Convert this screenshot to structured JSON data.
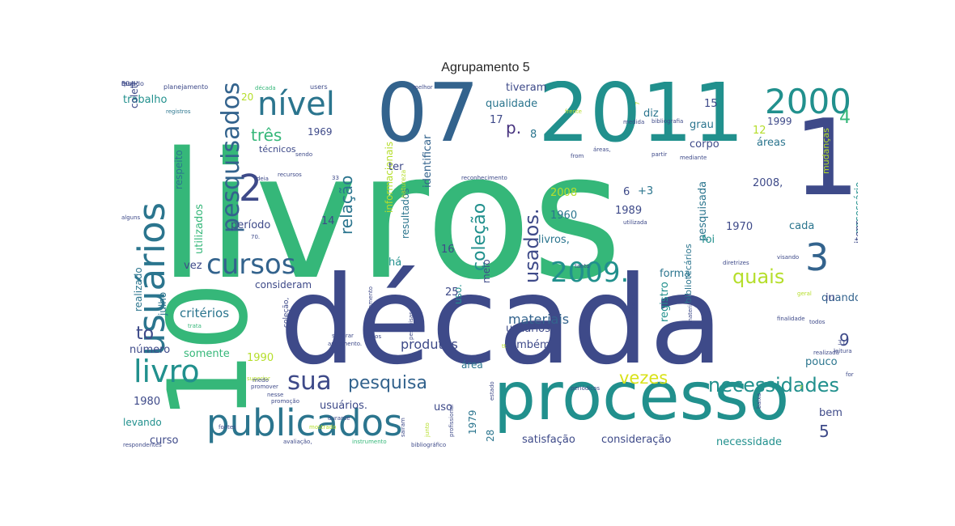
{
  "title": "Agrupamento 5",
  "palette": {
    "purple": "#46327e",
    "indigo": "#3e4a89",
    "blue": "#33638d",
    "steel": "#2b758e",
    "teal": "#21908d",
    "green": "#35b779",
    "lime": "#6ccd5a",
    "yellow": "#b5de2b",
    "pale": "#d8e219"
  },
  "words": [
    {
      "text": "livros"
    },
    {
      "text": "década"
    },
    {
      "text": "processo"
    },
    {
      "text": "2011"
    },
    {
      "text": "07"
    },
    {
      "text": "10"
    },
    {
      "text": "1"
    },
    {
      "text": "publicados"
    },
    {
      "text": "usuários"
    },
    {
      "text": "livro"
    },
    {
      "text": "2000"
    },
    {
      "text": "nível"
    },
    {
      "text": "cursos"
    },
    {
      "text": "2009."
    },
    {
      "text": "sua"
    },
    {
      "text": "pesquisados"
    },
    {
      "text": "necessidades"
    },
    {
      "text": "3"
    },
    {
      "text": "pesquisa"
    },
    {
      "text": "2"
    },
    {
      "text": "usados."
    },
    {
      "text": "coleção"
    },
    {
      "text": "relação"
    },
    {
      "text": "vezes"
    },
    {
      "text": "quais"
    },
    {
      "text": "três"
    },
    {
      "text": "materiais"
    },
    {
      "text": "produtos"
    },
    {
      "text": "critérios"
    },
    {
      "text": "to"
    },
    {
      "text": "9"
    },
    {
      "text": "5"
    },
    {
      "text": "4"
    },
    {
      "text": "p."
    },
    {
      "text": "8"
    },
    {
      "text": "trabalho"
    },
    {
      "text": "qualidade"
    },
    {
      "text": "tiveram"
    },
    {
      "text": "identificar"
    },
    {
      "text": "grau"
    },
    {
      "text": "corpo"
    },
    {
      "text": "1969"
    },
    {
      "text": "técnicos"
    },
    {
      "text": "respeito"
    },
    {
      "text": "utilizados"
    },
    {
      "text": "período"
    },
    {
      "text": "2008"
    },
    {
      "text": "1960"
    },
    {
      "text": "livros,"
    },
    {
      "text": "1989"
    },
    {
      "text": "6"
    },
    {
      "text": "+3"
    },
    {
      "text": "2008,"
    },
    {
      "text": "pesquisada"
    },
    {
      "text": "foi"
    },
    {
      "text": "1970"
    },
    {
      "text": "cada"
    },
    {
      "text": "necessário"
    },
    {
      "text": "itens"
    },
    {
      "text": "forma"
    },
    {
      "text": "quando"
    },
    {
      "text": "registro"
    },
    {
      "text": "in"
    },
    {
      "text": "usuários,"
    },
    {
      "text": "também"
    },
    {
      "text": "pouco"
    },
    {
      "text": "1990"
    },
    {
      "text": "somente"
    },
    {
      "text": "número"
    },
    {
      "text": "realizado"
    },
    {
      "text": "julho"
    },
    {
      "text": "consideram"
    },
    {
      "text": "uso."
    },
    {
      "text": "meio"
    },
    {
      "text": "informacionais"
    },
    {
      "text": "resultados"
    },
    {
      "text": "há"
    },
    {
      "text": "16"
    },
    {
      "text": "25"
    },
    {
      "text": "levando"
    },
    {
      "text": "1980"
    },
    {
      "text": "curso"
    },
    {
      "text": "usuários."
    },
    {
      "text": "uso"
    },
    {
      "text": "1979"
    },
    {
      "text": "28"
    },
    {
      "text": "satisfação"
    },
    {
      "text": "consideração"
    },
    {
      "text": "necessidade"
    },
    {
      "text": "bem"
    },
    {
      "text": "área"
    },
    {
      "text": "bibliotecários"
    },
    {
      "text": "vez"
    },
    {
      "text": "diz"
    },
    {
      "text": "15"
    },
    {
      "text": "1999"
    },
    {
      "text": "áreas"
    },
    {
      "text": "12"
    },
    {
      "text": "17"
    },
    {
      "text": "ter"
    },
    {
      "text": "14"
    },
    {
      "text": "20"
    },
    {
      "text": "coleta"
    },
    {
      "text": "mudanças"
    },
    {
      "text": "planejamento"
    },
    {
      "text": "users"
    },
    {
      "text": "registros"
    },
    {
      "text": "melhor"
    },
    {
      "text": "década"
    },
    {
      "text": "coleção,"
    },
    {
      "text": "finalidade"
    },
    {
      "text": "diretrizes"
    },
    {
      "text": "periódicos"
    },
    {
      "text": "respondentes"
    },
    {
      "text": "avaliação,"
    },
    {
      "text": "instrumento"
    },
    {
      "text": "bibliográfico"
    },
    {
      "text": "promoção"
    },
    {
      "text": "superior"
    },
    {
      "text": "geral"
    },
    {
      "text": "trata"
    },
    {
      "text": "visando"
    },
    {
      "text": "todos"
    },
    {
      "text": "realizada"
    },
    {
      "text": "leitura"
    },
    {
      "text": "material"
    },
    {
      "text": "pesquisas"
    },
    {
      "text": "partir"
    },
    {
      "text": "mediante"
    },
    {
      "text": "utilizada"
    },
    {
      "text": "reconhecimento"
    },
    {
      "text": "sendo"
    },
    {
      "text": "natureza"
    },
    {
      "text": "from"
    },
    {
      "text": "áreas,"
    },
    {
      "text": "superar"
    },
    {
      "text": "andamento"
    },
    {
      "text": "dados"
    },
    {
      "text": "sairam"
    },
    {
      "text": "junto"
    },
    {
      "text": "profissional"
    },
    {
      "text": "durante"
    },
    {
      "text": "mostrado"
    },
    {
      "text": "frente"
    },
    {
      "text": "escolha"
    },
    {
      "text": "fontes"
    },
    {
      "text": "baixa"
    },
    {
      "text": "estado"
    },
    {
      "text": "medida"
    },
    {
      "text": "tanto"
    },
    {
      "text": "ideia"
    },
    {
      "text": "recursos"
    },
    {
      "text": "promover"
    },
    {
      "text": "nesse"
    },
    {
      "text": "bibliografia"
    },
    {
      "text": "alguns"
    },
    {
      "text": "andamento."
    },
    {
      "text": "medo"
    },
    {
      "text": "tt"
    },
    {
      "text": "31"
    },
    {
      "text": "33"
    },
    {
      "text": "70."
    },
    {
      "text": "for"
    },
    {
      "text": "z"
    },
    {
      "text": "7"
    },
    {
      "text": "30"
    },
    {
      "text": "mundo"
    },
    {
      "text": "fase"
    },
    {
      "text": "qual"
    }
  ]
}
